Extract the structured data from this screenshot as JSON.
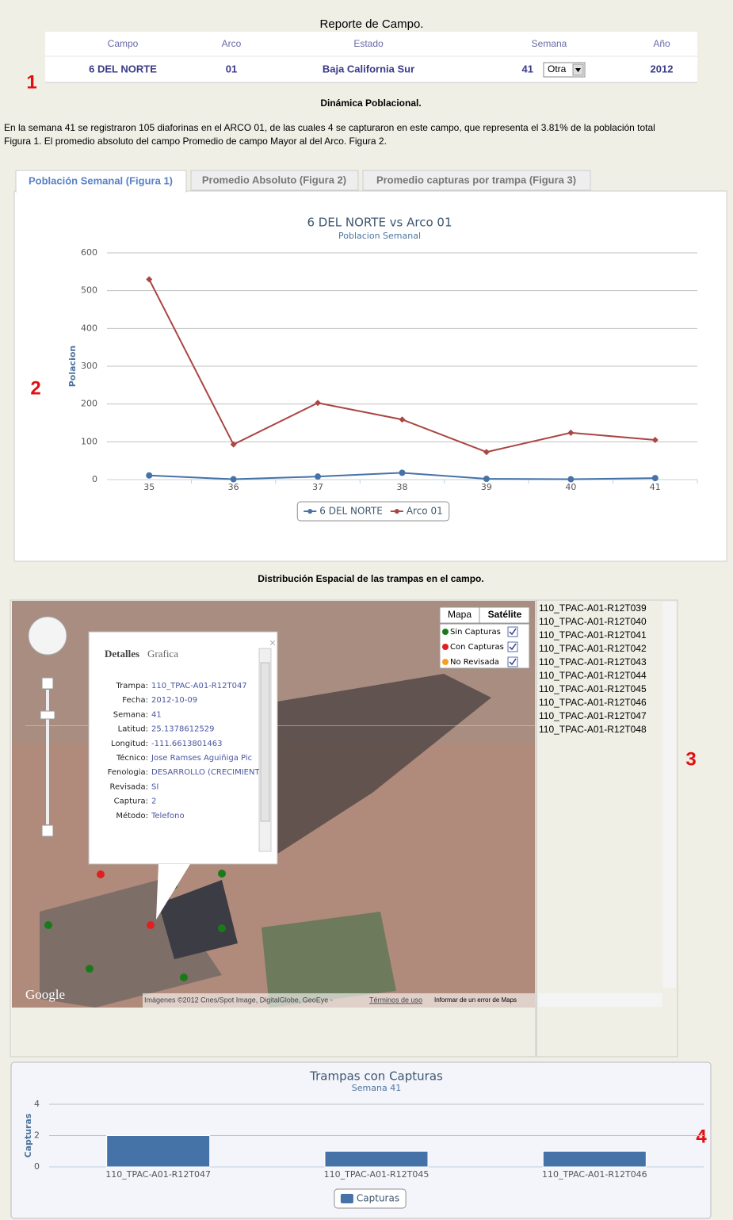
{
  "header": {
    "title": "Reporte de Campo."
  },
  "table": {
    "columns": [
      "Campo",
      "Arco",
      "Estado",
      "Semana",
      "Año"
    ],
    "row": [
      "6 DEL NORTE",
      "01",
      "Baja California Sur",
      "41",
      "2012"
    ],
    "select": "Otra"
  },
  "annotations": [
    "1",
    "2",
    "3",
    "4"
  ],
  "section_title": "Dinámica Poblacional.",
  "paragraph": [
    "En la semana 41 se registraron 105 diaforinas en el ARCO 01, de las cuales 4 se capturaron en este campo, que representa el 3.81% de la población total",
    "Figura 1. El promedio absoluto del campo Promedio de campo Mayor al del Arco. Figura 2."
  ],
  "tabs": [
    "Población Semanal (Figura 1)",
    "Promedio Absoluto (Figura 2)",
    "Promedio capturas por trampa (Figura 3)"
  ],
  "map_title": "Distribución Espacial de las trampas en el campo.",
  "map": {
    "buttons": [
      "Mapa",
      "Satélite"
    ],
    "legend": [
      {
        "label": "Sin Capturas",
        "color": "#1a7a1a"
      },
      {
        "label": "Con Capturas",
        "color": "#e02020"
      },
      {
        "label": "No Revisada",
        "color": "#f5a020"
      }
    ],
    "logo": "Google",
    "attribution": "Imágenes ©2012 Cnes/Spot Image, DigitalGlobe, GeoEye - ",
    "terms": "Términos de uso",
    "report": "Informar de un error de Maps",
    "popup": {
      "tabs": [
        "Detalles",
        "Grafica"
      ],
      "rows": [
        [
          "Trampa:",
          "110_TPAC-A01-R12T047"
        ],
        [
          "Fecha:",
          "2012-10-09"
        ],
        [
          "Semana:",
          "41"
        ],
        [
          "Latitud:",
          "25.1378612529"
        ],
        [
          "Longitud:",
          "-111.6613801463"
        ],
        [
          "Técnico:",
          "Jose Ramses Aguiñiga Pic"
        ],
        [
          "Fenologia:",
          "DESARROLLO (CRECIMIENT"
        ],
        [
          "Revisada:",
          "SI"
        ],
        [
          "Captura:",
          "2"
        ],
        [
          "Método:",
          "Telefono"
        ]
      ]
    }
  },
  "trap_list": [
    "110_TPAC-A01-R12T039",
    "110_TPAC-A01-R12T040",
    "110_TPAC-A01-R12T041",
    "110_TPAC-A01-R12T042",
    "110_TPAC-A01-R12T043",
    "110_TPAC-A01-R12T044",
    "110_TPAC-A01-R12T045",
    "110_TPAC-A01-R12T046",
    "110_TPAC-A01-R12T047",
    "110_TPAC-A01-R12T048"
  ],
  "chart_data": [
    {
      "type": "line",
      "title": "6 DEL NORTE vs Arco 01",
      "subtitle": "Poblacion Semanal",
      "y_label": "Polacion",
      "categories": [
        "35",
        "36",
        "37",
        "38",
        "39",
        "40",
        "41"
      ],
      "series": [
        {
          "name": "6 DEL NORTE",
          "color": "#4572a7",
          "values": [
            11,
            1,
            8,
            18,
            2,
            1,
            4
          ]
        },
        {
          "name": "Arco 01",
          "color": "#aa4643",
          "values": [
            530,
            93,
            203,
            159,
            73,
            124,
            105
          ]
        }
      ],
      "ylim": [
        0,
        600
      ],
      "yticks": [
        0,
        100,
        200,
        300,
        400,
        500,
        600
      ],
      "grid": true
    },
    {
      "type": "bar",
      "title": "Trampas con Capturas",
      "subtitle": "Semana 41",
      "y_label": "Capturas",
      "categories": [
        "110_TPAC-A01-R12T047",
        "110_TPAC-A01-R12T045",
        "110_TPAC-A01-R12T046"
      ],
      "series": [
        {
          "name": "Capturas",
          "color": "#4572a7",
          "values": [
            2,
            1,
            1
          ]
        }
      ],
      "ylim": [
        0,
        4
      ],
      "yticks": [
        0,
        2,
        4
      ],
      "grid": true
    }
  ]
}
